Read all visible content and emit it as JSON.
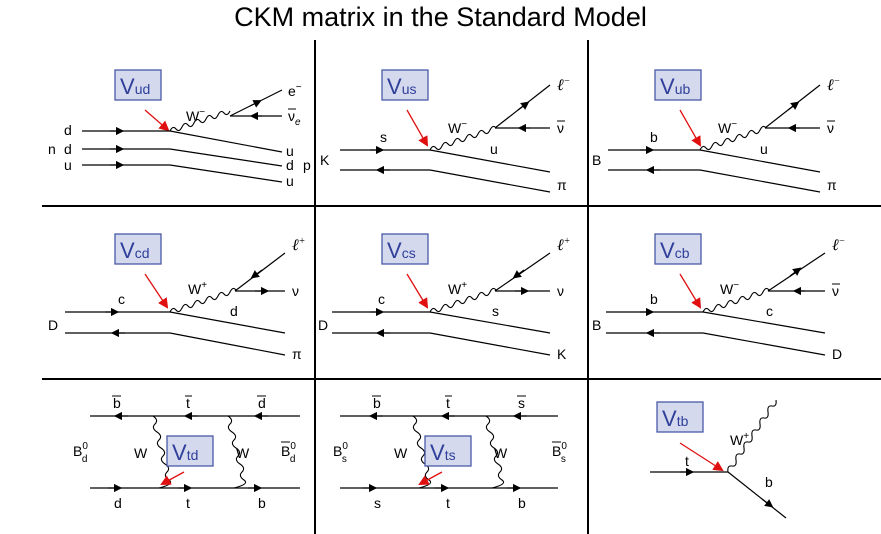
{
  "title": "CKM matrix in the Standard Model",
  "accent_color": "#2f3f9a",
  "box_fill": "#d4d9ee",
  "arrow_color": "#e01010",
  "panels": {
    "ud": {
      "v_main": "V",
      "v_sub": "ud",
      "labels": {
        "d1": "d",
        "d2": "d",
        "u1": "u",
        "n": "n",
        "W": "W",
        "Wsup": "−",
        "e": "e",
        "esup": "−",
        "nu": "ν",
        "nubar": "̄",
        "nusub": "e",
        "out_u1": "u",
        "out_d": "d",
        "out_u2": "u",
        "p": "p"
      }
    },
    "us": {
      "v_main": "V",
      "v_sub": "us",
      "labels": {
        "s": "s",
        "K": "K",
        "W": "W",
        "Wsup": "−",
        "u": "u",
        "pi": "π",
        "l": "ℓ",
        "lsup": "−",
        "nu": "ν"
      }
    },
    "ub": {
      "v_main": "V",
      "v_sub": "ub",
      "labels": {
        "b": "b",
        "B": "B",
        "W": "W",
        "Wsup": "−",
        "u": "u",
        "pi": "π",
        "l": "ℓ",
        "lsup": "−",
        "nu": "ν"
      }
    },
    "cd": {
      "v_main": "V",
      "v_sub": "cd",
      "labels": {
        "c": "c",
        "D": "D",
        "W": "W",
        "Wsup": "+",
        "d": "d",
        "pi": "π",
        "l": "ℓ",
        "lsup": "+",
        "nu": "ν"
      }
    },
    "cs": {
      "v_main": "V",
      "v_sub": "cs",
      "labels": {
        "c": "c",
        "D": "D",
        "W": "W",
        "Wsup": "+",
        "s": "s",
        "K": "K",
        "l": "ℓ",
        "lsup": "+",
        "nu": "ν"
      }
    },
    "cb": {
      "v_main": "V",
      "v_sub": "cb",
      "labels": {
        "b": "b",
        "B": "B",
        "W": "W",
        "Wsup": "−",
        "c": "c",
        "D": "D",
        "l": "ℓ",
        "lsup": "−",
        "nu": "ν"
      }
    },
    "td": {
      "v_main": "V",
      "v_sub": "td",
      "labels": {
        "btop": "b",
        "ttop": "t",
        "dtop": "d",
        "Bleft": "B",
        "Bleftsub": "d",
        "Bleftsup": "0",
        "Bright": "B",
        "Brightsub": "d",
        "Brightsup": "0",
        "W1": "W",
        "W2": "W",
        "dbot": "d",
        "tbot": "t",
        "bbot": "b"
      }
    },
    "ts": {
      "v_main": "V",
      "v_sub": "ts",
      "labels": {
        "btop": "b",
        "ttop": "t",
        "stop": "s",
        "Bleft": "B",
        "Bleftsub": "s",
        "Bleftsup": "0",
        "Bright": "B",
        "Brightsub": "s",
        "Brightsup": "0",
        "W1": "W",
        "W2": "W",
        "sbot": "s",
        "tbot": "t",
        "bbot": "b"
      }
    },
    "tb": {
      "v_main": "V",
      "v_sub": "tb",
      "labels": {
        "t": "t",
        "W": "W",
        "Wsup": "+",
        "b": "b"
      }
    }
  }
}
